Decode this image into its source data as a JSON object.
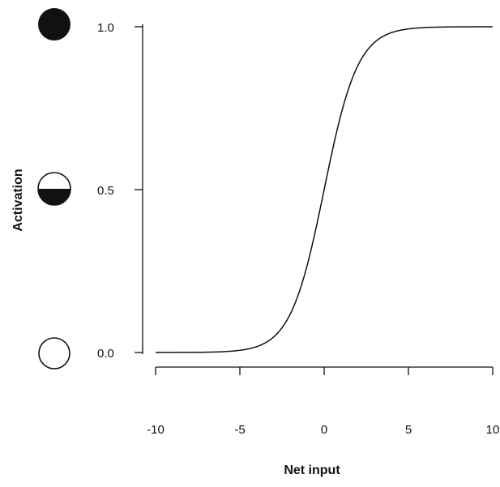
{
  "chart_data": {
    "type": "line",
    "title": "",
    "xlabel": "Net input",
    "ylabel": "Activation",
    "xlim": [
      -10,
      10
    ],
    "ylim": [
      0,
      1
    ],
    "x_ticks": [
      -10,
      -5,
      0,
      5,
      10
    ],
    "x_tick_labels": [
      "-10",
      "-5",
      "0",
      "5",
      "10"
    ],
    "y_ticks": [
      0,
      0.5,
      1
    ],
    "y_tick_labels": [
      "0.0",
      "0.5",
      "1.0"
    ],
    "grid": false,
    "legend": "none",
    "y_markers": [
      {
        "y": 1.0,
        "icon": "filled-circle-icon"
      },
      {
        "y": 0.5,
        "icon": "half-filled-circle-icon"
      },
      {
        "y": 0.0,
        "icon": "empty-circle-icon"
      }
    ],
    "series": [
      {
        "function": "logistic",
        "x": [
          -10,
          -8,
          -6,
          -5,
          -4,
          -3,
          -2,
          -1,
          0,
          1,
          2,
          3,
          4,
          5,
          6,
          8,
          10
        ],
        "y": [
          0.0,
          0.0003,
          0.0025,
          0.0067,
          0.018,
          0.047,
          0.119,
          0.269,
          0.5,
          0.731,
          0.881,
          0.953,
          0.982,
          0.993,
          0.9975,
          0.9997,
          1.0
        ]
      }
    ],
    "colors": {
      "ink": "#111111",
      "background": "#ffffff"
    }
  }
}
